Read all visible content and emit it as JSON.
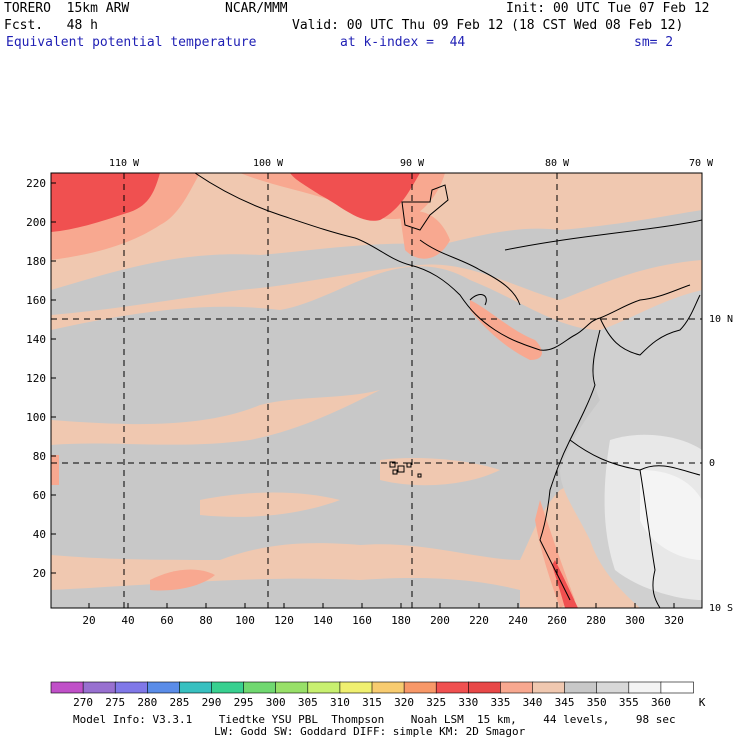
{
  "header": {
    "model": "TORERO  15km ARW",
    "center": "NCAR/MMM",
    "init": "Init: 00 UTC Tue 07 Feb 12",
    "fcst": "Fcst.   48 h",
    "valid": "Valid: 00 UTC Thu 09 Feb 12 (18 CST Wed 08 Feb 12)",
    "field": "Equivalent potential temperature",
    "level": "at k-index =  44",
    "smooth": "sm= 2"
  },
  "map": {
    "lon_labels": [
      "110 W",
      "100 W",
      "90 W",
      "80 W",
      "70 W"
    ],
    "lat_labels": [
      "10 N",
      "0",
      "10 S"
    ],
    "grid_y_labels": [
      "220",
      "200",
      "180",
      "160",
      "140",
      "120",
      "100",
      "80",
      "60",
      "40",
      "20"
    ],
    "grid_x_labels": [
      "20",
      "40",
      "60",
      "80",
      "100",
      "120",
      "140",
      "160",
      "180",
      "200",
      "220",
      "240",
      "260",
      "280",
      "300",
      "320"
    ]
  },
  "colorbar": {
    "labels": [
      "270",
      "275",
      "280",
      "285",
      "290",
      "295",
      "300",
      "305",
      "310",
      "315",
      "320",
      "325",
      "330",
      "335",
      "340",
      "345",
      "350",
      "355",
      "360"
    ],
    "unit": "K",
    "colors": [
      "#c050c8",
      "#9870d0",
      "#8078e8",
      "#5a8ce8",
      "#38c0c0",
      "#38d090",
      "#70d870",
      "#98e068",
      "#c8f070",
      "#f0f070",
      "#f8cc70",
      "#f89868",
      "#f05050",
      "#e84848",
      "#f8a890",
      "#f0c8b0",
      "#c8c8c8",
      "#d8d8d8",
      "#f4f4f4",
      "#ffffff"
    ]
  },
  "footer": {
    "line1": "Model Info: V3.3.1    Tiedtke YSU PBL  Thompson    Noah LSM  15 km,    44 levels,    98 sec",
    "line2": "LW: Godd SW: Goddard DIFF: simple KM: 2D Smagor"
  }
}
